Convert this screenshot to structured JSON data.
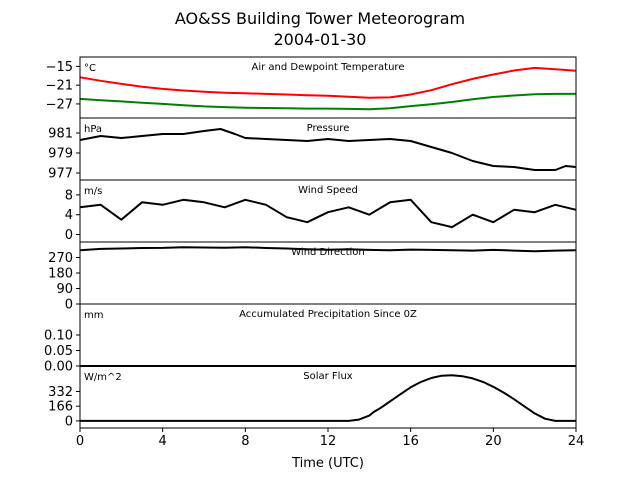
{
  "title_line1": "AO&SS Building Tower Meteorogram",
  "title_line2": "2004-01-30",
  "xlabel": "Time (UTC)",
  "x_ticks": [
    "0",
    "4",
    "8",
    "12",
    "16",
    "20",
    "24"
  ],
  "x_tick_values": [
    0,
    4,
    8,
    12,
    16,
    20,
    24
  ],
  "chart_data": [
    {
      "type": "line",
      "title": "Air and Dewpoint Temperature",
      "unit": "°C",
      "xlim": [
        0,
        24
      ],
      "ylim": [
        -31.5,
        -12
      ],
      "yticks": [
        -15,
        -21,
        -27
      ],
      "ytick_labels": [
        "−15",
        "−21",
        "−27"
      ],
      "series": [
        {
          "color": "#ff0000",
          "x": [
            0,
            1,
            2,
            3,
            4,
            5,
            6,
            7,
            8,
            9,
            10,
            11,
            12,
            13,
            14,
            15,
            16,
            17,
            18,
            19,
            20,
            21,
            22,
            23,
            24
          ],
          "y": [
            -18.5,
            -19.6,
            -20.6,
            -21.5,
            -22.2,
            -22.7,
            -23.1,
            -23.4,
            -23.6,
            -23.8,
            -24.0,
            -24.2,
            -24.4,
            -24.7,
            -25.0,
            -24.9,
            -24.0,
            -22.6,
            -20.7,
            -19.0,
            -17.6,
            -16.3,
            -15.5,
            -15.9,
            -16.4
          ]
        },
        {
          "color": "#008000",
          "x": [
            0,
            1,
            2,
            3,
            4,
            5,
            6,
            7,
            8,
            9,
            10,
            11,
            12,
            13,
            14,
            15,
            16,
            17,
            18,
            19,
            20,
            21,
            22,
            23,
            24
          ],
          "y": [
            -25.4,
            -25.8,
            -26.2,
            -26.6,
            -27.0,
            -27.4,
            -27.8,
            -28.0,
            -28.2,
            -28.3,
            -28.4,
            -28.5,
            -28.5,
            -28.6,
            -28.7,
            -28.4,
            -27.7,
            -27.1,
            -26.4,
            -25.5,
            -24.8,
            -24.3,
            -23.9,
            -23.8,
            -23.8
          ]
        }
      ]
    },
    {
      "type": "line",
      "title": "Pressure",
      "unit": "hPa",
      "xlim": [
        0,
        24
      ],
      "ylim": [
        976.3,
        982.5
      ],
      "yticks": [
        981,
        979,
        977
      ],
      "ytick_labels": [
        "981",
        "979",
        "977"
      ],
      "series": [
        {
          "color": "#000000",
          "x": [
            0,
            1,
            2,
            3,
            4,
            5,
            6,
            6.8,
            7.5,
            8,
            9,
            10,
            11,
            12,
            13,
            14,
            15,
            16,
            17,
            18,
            19,
            20,
            21,
            22,
            23,
            23.5,
            24
          ],
          "y": [
            980.3,
            980.7,
            980.5,
            980.7,
            980.9,
            980.9,
            981.2,
            981.4,
            980.9,
            980.5,
            980.4,
            980.3,
            980.2,
            980.4,
            980.2,
            980.3,
            980.4,
            980.2,
            979.6,
            979.0,
            978.2,
            977.7,
            977.6,
            977.3,
            977.3,
            977.7,
            977.6
          ]
        }
      ]
    },
    {
      "type": "line",
      "title": "Wind Speed",
      "unit": "m/s",
      "xlim": [
        0,
        24
      ],
      "ylim": [
        -1.5,
        11
      ],
      "yticks": [
        8,
        4,
        0
      ],
      "ytick_labels": [
        "8",
        "4",
        "0"
      ],
      "series": [
        {
          "color": "#000000",
          "x": [
            0,
            1,
            2,
            3,
            4,
            5,
            6,
            7,
            8,
            9,
            10,
            11,
            12,
            13,
            14,
            15,
            16,
            17,
            18,
            19,
            20,
            21,
            22,
            23,
            24
          ],
          "y": [
            5.5,
            6.0,
            3.0,
            6.5,
            6.0,
            7.0,
            6.5,
            5.5,
            7.0,
            6.0,
            3.5,
            2.5,
            4.5,
            5.5,
            4.0,
            6.5,
            7.0,
            2.5,
            1.5,
            4.0,
            2.5,
            5.0,
            4.5,
            6.0,
            5.0
          ]
        }
      ]
    },
    {
      "type": "line",
      "title": "Wind Direction",
      "unit": "",
      "xlim": [
        0,
        24
      ],
      "ylim": [
        0,
        360
      ],
      "yticks": [
        270,
        180,
        90,
        0
      ],
      "ytick_labels": [
        "270",
        "180",
        "90",
        "0"
      ],
      "series": [
        {
          "color": "#000000",
          "x": [
            0,
            1,
            2,
            3,
            4,
            5,
            6,
            7,
            8,
            9,
            10,
            11,
            12,
            13,
            14,
            15,
            16,
            17,
            18,
            19,
            20,
            21,
            22,
            23,
            24
          ],
          "y": [
            312,
            320,
            322,
            325,
            326,
            330,
            328,
            327,
            330,
            325,
            322,
            318,
            315,
            318,
            314,
            312,
            316,
            314,
            312,
            310,
            314,
            310,
            306,
            310,
            312
          ]
        }
      ]
    },
    {
      "type": "line",
      "title": "Accumulated Precipitation Since 0Z",
      "unit": "mm",
      "xlim": [
        0,
        24
      ],
      "ylim": [
        0,
        0.2
      ],
      "yticks": [
        0.1,
        0.05,
        0.0
      ],
      "ytick_labels": [
        "0.10",
        "0.05",
        "0.00"
      ],
      "series": [
        {
          "color": "#000000",
          "x": [
            0,
            24
          ],
          "y": [
            0,
            0
          ]
        }
      ]
    },
    {
      "type": "line",
      "title": "Solar Flux",
      "unit": "W/m^2",
      "xlim": [
        0,
        24
      ],
      "ylim": [
        -80,
        620
      ],
      "yticks": [
        332,
        166,
        0
      ],
      "ytick_labels": [
        "332",
        "166",
        "0"
      ],
      "series": [
        {
          "color": "#000000",
          "x": [
            0,
            13.0,
            13.5,
            14.0,
            14.2,
            14.5,
            15.0,
            15.5,
            16.0,
            16.5,
            17.0,
            17.5,
            18.0,
            18.5,
            19.0,
            19.5,
            20.0,
            20.5,
            21.0,
            21.5,
            22.0,
            22.5,
            23.0,
            24.0
          ],
          "y": [
            0,
            0,
            15,
            60,
            100,
            140,
            220,
            300,
            380,
            440,
            485,
            510,
            515,
            505,
            480,
            440,
            385,
            320,
            245,
            165,
            85,
            25,
            0,
            0
          ]
        }
      ]
    }
  ]
}
